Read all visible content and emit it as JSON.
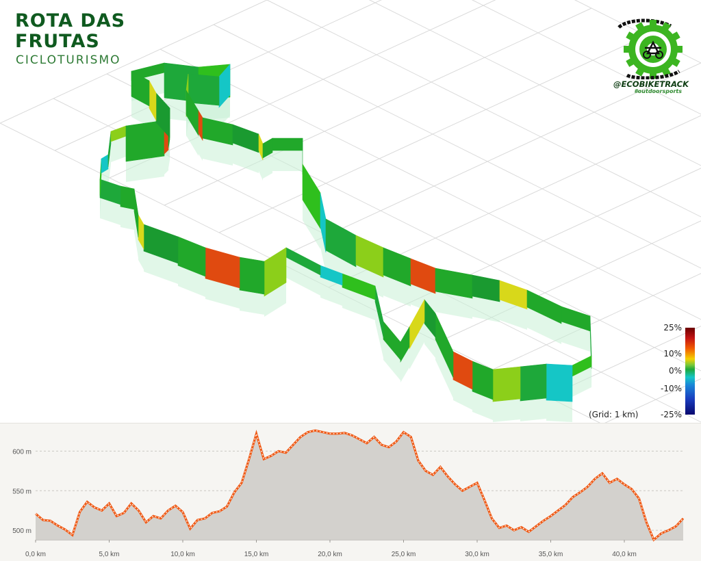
{
  "header": {
    "title_line1": "ROTA DAS",
    "title_line2": "FRUTAS",
    "subtitle": "CICLOTURISMO"
  },
  "logo": {
    "handle": "@ECOBIKETRACK",
    "tagline": "#outdoorsports",
    "icon": "bike-gear-chain-icon",
    "colors": {
      "green": "#3cb521",
      "dark": "#111111"
    }
  },
  "map": {
    "grid_label": "(Grid: 1 km)",
    "legend": {
      "labels": [
        "25%",
        "10%",
        "0%",
        "-10%",
        "-25%"
      ],
      "colors": [
        "#6b0000",
        "#f4d100",
        "#1ea83a",
        "#15c6c6",
        "#08086e"
      ]
    }
  },
  "chart_data": {
    "type": "area",
    "title": "",
    "xlabel": "",
    "ylabel": "",
    "x_unit": "km",
    "y_unit": "m",
    "xlim": [
      0,
      44
    ],
    "ylim": [
      488,
      628
    ],
    "x_ticks": [
      "0,0 km",
      "5,0 km",
      "10,0 km",
      "15,0 km",
      "20,0 km",
      "25,0 km",
      "30,0 km",
      "35,0 km",
      "40,0 km"
    ],
    "y_ticks": [
      "500 m",
      "550 m",
      "600 m"
    ],
    "colors": {
      "line": "#ef5a16",
      "fill": "#d3d1cd",
      "background": "#f6f5f2"
    },
    "series": [
      {
        "x": [
          0,
          0.5,
          1.0,
          1.5,
          2.0,
          2.5,
          3.0,
          3.5,
          4.0,
          4.5,
          5.0,
          5.5,
          6.0,
          6.5,
          7.0,
          7.5,
          8.0,
          8.5,
          9.0,
          9.5,
          10.0,
          10.5,
          11.0,
          11.5,
          12.0,
          12.5,
          13.0,
          13.5,
          14.0,
          14.5,
          15.0,
          15.5,
          16.0,
          16.5,
          17.0,
          17.5,
          18.0,
          18.5,
          19.0,
          19.5,
          20.0,
          20.5,
          21.0,
          21.5,
          22.0,
          22.5,
          23.0,
          23.5,
          24.0,
          24.5,
          25.0,
          25.5,
          26.0,
          26.5,
          27.0,
          27.5,
          28.0,
          28.5,
          29.0,
          29.5,
          30.0,
          30.5,
          31.0,
          31.5,
          32.0,
          32.5,
          33.0,
          33.5,
          34.0,
          34.5,
          35.0,
          35.5,
          36.0,
          36.5,
          37.0,
          37.5,
          38.0,
          38.5,
          39.0,
          39.5,
          40.0,
          40.5,
          41.0,
          41.5,
          42.0,
          42.5,
          43.0,
          43.5,
          44.0
        ],
        "y": [
          521,
          513,
          512,
          506,
          501,
          494,
          523,
          536,
          529,
          525,
          534,
          518,
          522,
          534,
          525,
          510,
          518,
          515,
          525,
          531,
          523,
          502,
          513,
          515,
          522,
          524,
          530,
          548,
          560,
          590,
          622,
          590,
          594,
          600,
          598,
          608,
          618,
          624,
          626,
          624,
          622,
          622,
          623,
          620,
          615,
          610,
          618,
          608,
          605,
          612,
          624,
          618,
          588,
          575,
          570,
          580,
          568,
          558,
          550,
          555,
          560,
          538,
          515,
          503,
          506,
          500,
          504,
          498,
          505,
          512,
          518,
          525,
          532,
          542,
          548,
          555,
          565,
          572,
          560,
          565,
          558,
          552,
          540,
          510,
          488,
          496,
          500,
          505,
          515
        ]
      }
    ]
  }
}
